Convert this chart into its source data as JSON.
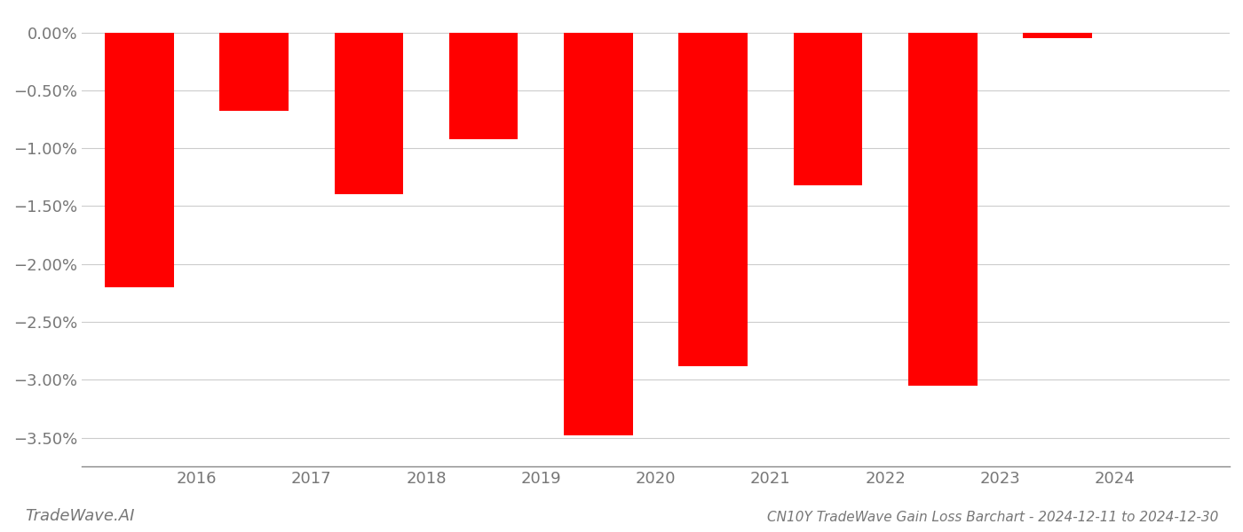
{
  "bar_centers": [
    2015.5,
    2016.5,
    2017.5,
    2018.5,
    2019.5,
    2020.5,
    2021.5,
    2022.5,
    2023.5
  ],
  "values": [
    -2.2,
    -0.68,
    -1.4,
    -0.92,
    -3.48,
    -2.88,
    -1.32,
    -3.05,
    -0.05
  ],
  "bar_color": "#ff0000",
  "ylim_bottom": -3.75,
  "ylim_top": 0.12,
  "yticks": [
    0.0,
    -0.5,
    -1.0,
    -1.5,
    -2.0,
    -2.5,
    -3.0,
    -3.5
  ],
  "ytick_labels": [
    "0.00%",
    "−0.50%",
    "−1.00%",
    "−1.50%",
    "−2.00%",
    "−2.50%",
    "−3.00%",
    "−3.50%"
  ],
  "xlim_left": 2015.0,
  "xlim_right": 2025.0,
  "xticks": [
    2016,
    2017,
    2018,
    2019,
    2020,
    2021,
    2022,
    2023,
    2024
  ],
  "bar_width": 0.6,
  "title": "CN10Y TradeWave Gain Loss Barchart - 2024-12-11 to 2024-12-30",
  "watermark": "TradeWave.AI",
  "background_color": "#ffffff",
  "grid_color": "#cccccc",
  "axis_color": "#888888",
  "text_color": "#777777",
  "title_color": "#777777"
}
